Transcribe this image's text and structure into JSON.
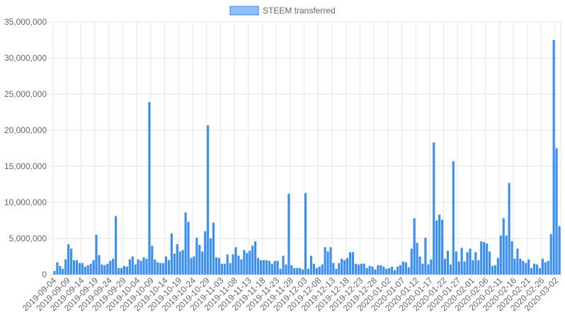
{
  "colors": {
    "bar_fill": "#3b8ff0",
    "bar_stroke": "#2a7be0",
    "legend_fill": "#8ec1f7",
    "legend_stroke": "#2f86eb",
    "grid": "#e6e6e6",
    "text": "#666666"
  },
  "chart_data": {
    "type": "bar",
    "legend": {
      "label": "STEEM transferred",
      "position": "top"
    },
    "grid": true,
    "ylim": [
      0,
      35000000
    ],
    "yticks": [
      0,
      5000000,
      10000000,
      15000000,
      20000000,
      25000000,
      30000000,
      35000000
    ],
    "ytick_labels": [
      "0",
      "5,000,000",
      "10,000,000",
      "15,000,000",
      "20,000,000",
      "25,000,000",
      "30,000,000",
      "35,000,000"
    ],
    "start_date": "2019-09-04",
    "end_date": "2020-03-03",
    "xtick_labels": [
      "2019-09-04",
      "2019-09-09",
      "2019-09-14",
      "2019-09-19",
      "2019-09-24",
      "2019-09-29",
      "2019-10-04",
      "2019-10-09",
      "2019-10-14",
      "2019-10-19",
      "2019-10-24",
      "2019-10-29",
      "2019-11-03",
      "2019-11-08",
      "2019-11-13",
      "2019-11-18",
      "2019-11-23",
      "2019-11-28",
      "2019-12-03",
      "2019-12-08",
      "2019-12-13",
      "2019-12-18",
      "2019-12-23",
      "2019-12-28",
      "2020-01-02",
      "2020-01-07",
      "2020-01-12",
      "2020-01-17",
      "2020-01-22",
      "2020-01-27",
      "2020-02-01",
      "2020-02-06",
      "2020-02-11",
      "2020-02-16",
      "2020-02-21",
      "2020-02-26",
      "2020-03-02"
    ],
    "values": [
      500000,
      1700000,
      1200000,
      800000,
      2100000,
      4200000,
      3600000,
      2000000,
      2000000,
      1600000,
      1600000,
      1100000,
      1300000,
      1500000,
      2000000,
      5500000,
      2700000,
      1400000,
      1300000,
      1500000,
      1900000,
      2200000,
      8100000,
      900000,
      900000,
      1200000,
      1100000,
      2100000,
      2500000,
      1400000,
      2100000,
      1900000,
      2400000,
      2200000,
      23900000,
      4000000,
      2100000,
      1700000,
      1600000,
      1600000,
      2500000,
      2000000,
      5700000,
      2900000,
      4200000,
      3200000,
      3400000,
      8600000,
      7300000,
      2300000,
      2500000,
      5100000,
      4100000,
      3200000,
      6000000,
      20700000,
      5000000,
      7200000,
      2400000,
      2300000,
      1500000,
      1500000,
      2800000,
      1600000,
      2800000,
      3800000,
      2600000,
      2100000,
      3400000,
      3000000,
      3300000,
      4000000,
      4600000,
      2300000,
      2000000,
      2000000,
      2000000,
      1900000,
      1500000,
      1900000,
      1900000,
      800000,
      2600000,
      1400000,
      11200000,
      1300000,
      900000,
      900000,
      900000,
      700000,
      11300000,
      800000,
      2600000,
      1500000,
      900000,
      1100000,
      1400000,
      3800000,
      3200000,
      3800000,
      1600000,
      800000,
      1600000,
      2200000,
      2000000,
      2300000,
      3100000,
      3100000,
      1500000,
      1400000,
      1500000,
      1500000,
      900000,
      1200000,
      1100000,
      700000,
      1300000,
      1300000,
      1100000,
      800000,
      900000,
      1100000,
      600000,
      1100000,
      1300000,
      1800000,
      1700000,
      1000000,
      3600000,
      7800000,
      4400000,
      2500000,
      1500000,
      5100000,
      1400000,
      2100000,
      18300000,
      7500000,
      8300000,
      7600000,
      2200000,
      3300000,
      1400000,
      15700000,
      3200000,
      1800000,
      3700000,
      1800000,
      3100000,
      3600000,
      2000000,
      3100000,
      2000000,
      4600000,
      4500000,
      4300000,
      3200000,
      1200000,
      1300000,
      2300000,
      5400000,
      7800000,
      5400000,
      12700000,
      4600000,
      2200000,
      3600000,
      2200000,
      1900000,
      1600000,
      2100000,
      900000,
      1500000,
      1400000,
      900000,
      2200000,
      1700000,
      1900000,
      5600000,
      32500000,
      17500000,
      6700000
    ]
  }
}
